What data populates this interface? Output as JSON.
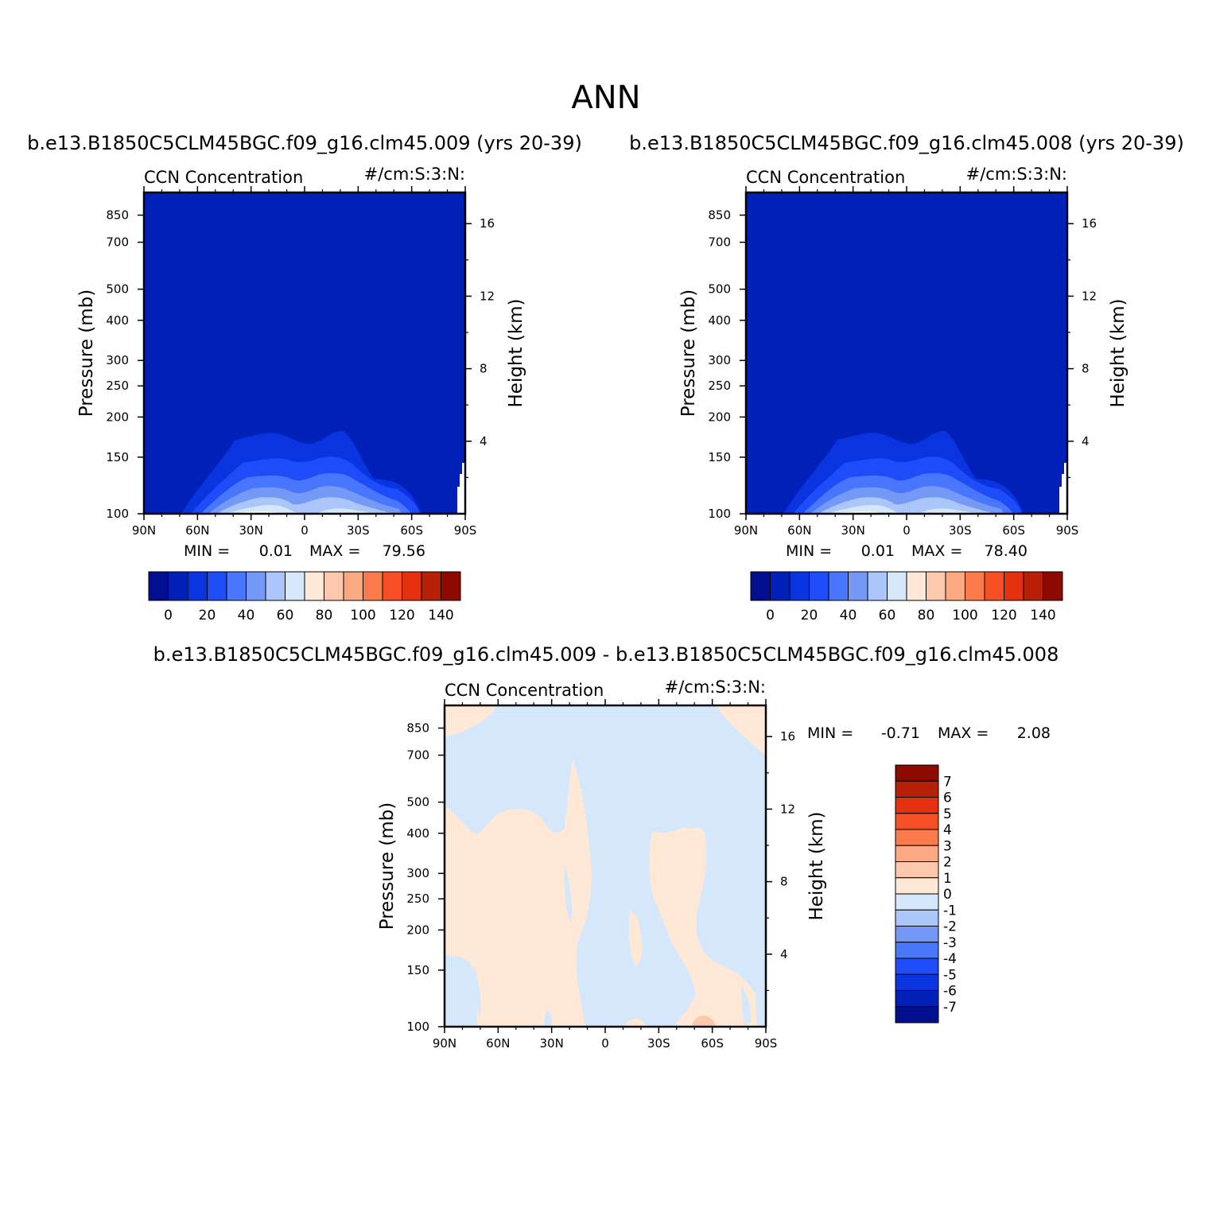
{
  "figure": {
    "title": "ANN",
    "colors": {
      "base_palette": [
        "#000e8f",
        "#0020b8",
        "#0a34e0",
        "#1f4cf9",
        "#4876fd",
        "#7599f7",
        "#abc6fb",
        "#d5e7fb",
        "#ffe9d6",
        "#fcc8ad",
        "#fca883",
        "#fd7a4a",
        "#f74f25",
        "#e53010",
        "#b82006",
        "#8c0a00"
      ],
      "diff_palette": [
        "#000e8f",
        "#0020b8",
        "#0a34e0",
        "#1f4cf9",
        "#4876fd",
        "#7599f7",
        "#abc6fb",
        "#d5e7fb",
        "#ffe9d6",
        "#fcc8ad",
        "#fca883",
        "#fd7a4a",
        "#f74f25",
        "#e53010",
        "#b82006",
        "#8c0a00"
      ]
    }
  },
  "chart_data": [
    {
      "type": "heatmap",
      "title": "b.e13.B1850C5CLM45BGC.f09_g16.clm45.009 (yrs 20-39)",
      "title_left": "CCN  Concentration",
      "title_right": "#/cm:S:3:N:",
      "xlabel": "",
      "ylabel": "Pressure  (mb)",
      "ylabel_right": "Height  (km)",
      "x_ticks": [
        "90N",
        "60N",
        "30N",
        "0",
        "30S",
        "60S",
        "90S"
      ],
      "y_ticks": [
        "100",
        "150",
        "200",
        "250",
        "300",
        "400",
        "500",
        "700",
        "850"
      ],
      "y_right_ticks": [
        "16",
        "12",
        "8",
        "4"
      ],
      "stats": {
        "min_label": "MIN =",
        "min": "0.01",
        "max_label": "MAX =",
        "max": "79.56"
      },
      "colorbar_ticks": [
        "0",
        "20",
        "40",
        "60",
        "80",
        "100",
        "120",
        "140"
      ],
      "ylim": [
        1000,
        100
      ],
      "y_scale": "log"
    },
    {
      "type": "heatmap",
      "title": "b.e13.B1850C5CLM45BGC.f09_g16.clm45.008 (yrs 20-39)",
      "title_left": "CCN  Concentration",
      "title_right": "#/cm:S:3:N:",
      "xlabel": "",
      "ylabel": "Pressure  (mb)",
      "ylabel_right": "Height  (km)",
      "x_ticks": [
        "90N",
        "60N",
        "30N",
        "0",
        "30S",
        "60S",
        "90S"
      ],
      "y_ticks": [
        "100",
        "150",
        "200",
        "250",
        "300",
        "400",
        "500",
        "700",
        "850"
      ],
      "y_right_ticks": [
        "16",
        "12",
        "8",
        "4"
      ],
      "stats": {
        "min_label": "MIN =",
        "min": "0.01",
        "max_label": "MAX =",
        "max": "78.40"
      },
      "colorbar_ticks": [
        "0",
        "20",
        "40",
        "60",
        "80",
        "100",
        "120",
        "140"
      ],
      "ylim": [
        1000,
        100
      ],
      "y_scale": "log"
    },
    {
      "type": "heatmap",
      "title": "b.e13.B1850C5CLM45BGC.f09_g16.clm45.009 - b.e13.B1850C5CLM45BGC.f09_g16.clm45.008",
      "title_left": "CCN  Concentration",
      "title_right": "#/cm:S:3:N:",
      "xlabel": "",
      "ylabel": "Pressure  (mb)",
      "ylabel_right": "Height  (km)",
      "x_ticks": [
        "90N",
        "60N",
        "30N",
        "0",
        "30S",
        "60S",
        "90S"
      ],
      "y_ticks": [
        "100",
        "150",
        "200",
        "250",
        "300",
        "400",
        "500",
        "700",
        "850"
      ],
      "y_right_ticks": [
        "16",
        "12",
        "8",
        "4"
      ],
      "stats": {
        "min_label": "MIN =",
        "min": "-0.71",
        "max_label": "MAX =",
        "max": "2.08"
      },
      "colorbar_ticks": [
        "7",
        "6",
        "5",
        "4",
        "3",
        "2",
        "1",
        "0",
        "-1",
        "-2",
        "-3",
        "-4",
        "-5",
        "-6",
        "-7"
      ],
      "ylim": [
        1000,
        100
      ],
      "y_scale": "log"
    }
  ]
}
